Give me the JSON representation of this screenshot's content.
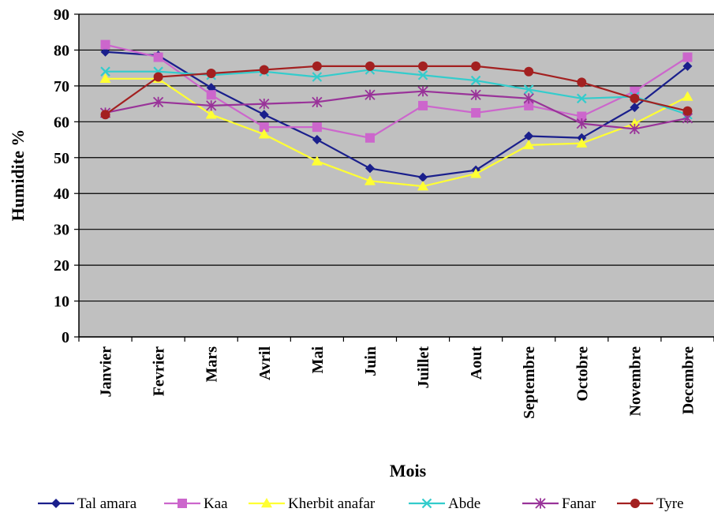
{
  "chart_data": {
    "type": "line",
    "title": "",
    "xlabel": "Mois",
    "ylabel": "Humidite %",
    "ylim": [
      0,
      90
    ],
    "yticks": [
      0,
      10,
      20,
      30,
      40,
      50,
      60,
      70,
      80,
      90
    ],
    "grid": true,
    "legend_position": "bottom",
    "plot_background": "#c0c0c0",
    "categories": [
      "Janvier",
      "Fevrier",
      "Mars",
      "Avril",
      "Mai",
      "Juin",
      "Juillet",
      "Aout",
      "Septembre",
      "Octobre",
      "Novembre",
      "Decembre"
    ],
    "series": [
      {
        "name": "Tal amara",
        "color": "#1a1f8c",
        "marker": "diamond",
        "values": [
          79.5,
          78.5,
          69.5,
          62,
          55,
          47,
          44.5,
          46.5,
          56,
          55.5,
          64,
          75.5
        ]
      },
      {
        "name": "Kaa",
        "color": "#cc66cc",
        "marker": "square",
        "values": [
          81.5,
          78,
          67.5,
          58.5,
          58.5,
          55.5,
          64.5,
          62.5,
          64.5,
          61.5,
          68.5,
          78
        ]
      },
      {
        "name": "Kherbit anafar",
        "color": "#ffff33",
        "marker": "triangle",
        "values": [
          72,
          72,
          62,
          56.5,
          49,
          43.5,
          42,
          45.5,
          53.5,
          54,
          59.5,
          67
        ]
      },
      {
        "name": "Abde",
        "color": "#33cccc",
        "marker": "x",
        "values": [
          74,
          74,
          73,
          74,
          72.5,
          74.5,
          73,
          71.5,
          69,
          66.5,
          67,
          62
        ]
      },
      {
        "name": "Fanar",
        "color": "#993399",
        "marker": "star",
        "values": [
          62.5,
          65.5,
          64.5,
          65,
          65.5,
          67.5,
          68.5,
          67.5,
          66.5,
          59.5,
          58,
          61
        ]
      },
      {
        "name": "Tyre",
        "color": "#a32020",
        "marker": "circle",
        "values": [
          62,
          72.5,
          73.5,
          74.5,
          75.5,
          75.5,
          75.5,
          75.5,
          74,
          71,
          66.5,
          63
        ]
      }
    ]
  }
}
